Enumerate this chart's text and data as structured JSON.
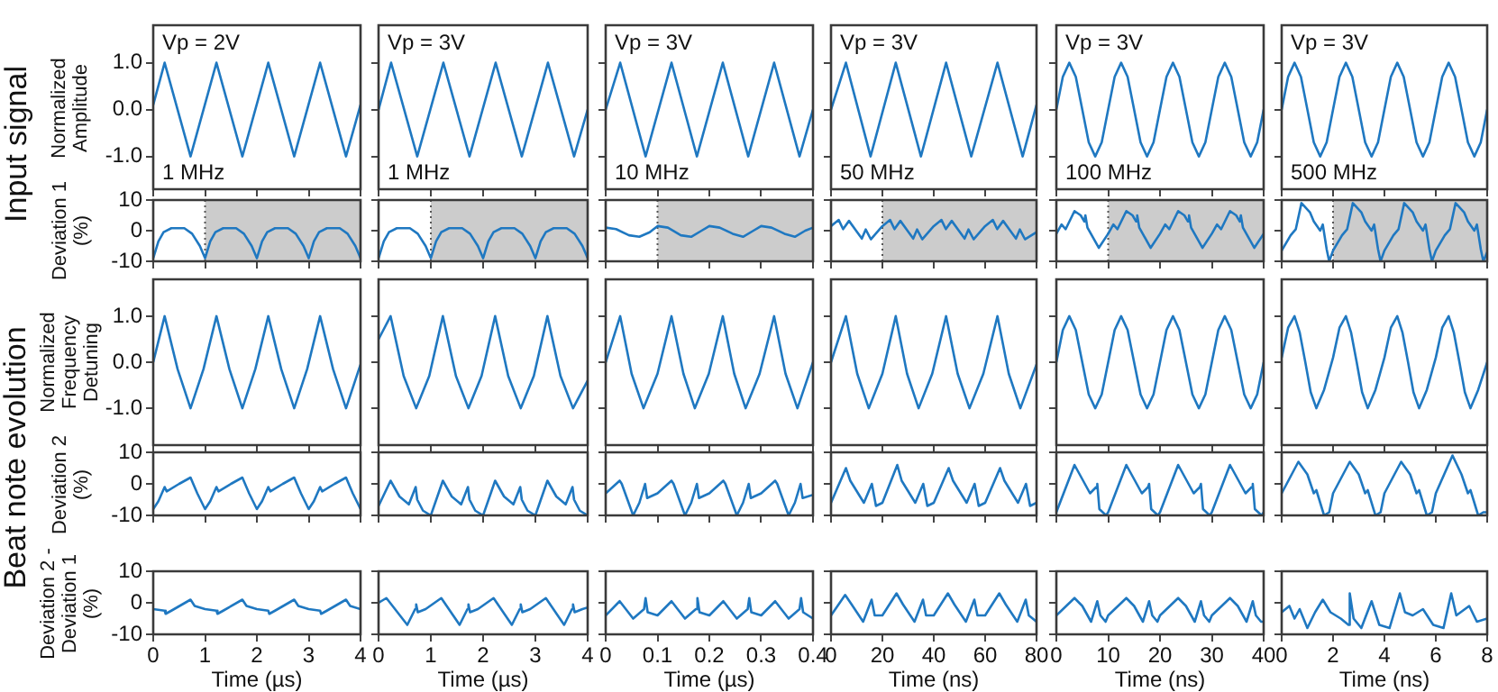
{
  "chart_data": [
    {
      "type": "line",
      "title": "Input signal",
      "ylabel": "Normalized Amplitude",
      "tick_labels": "y",
      "annotations": [
        "Vp = 2V",
        "1 MHz"
      ],
      "color": "#1f78c1",
      "xlim": [
        0,
        4
      ],
      "xticks": [
        0,
        1,
        2,
        3,
        4
      ],
      "ylim": [
        -1.7,
        1.8
      ],
      "yticks": [
        {
          "value": -1,
          "label": "-1.0"
        },
        {
          "value": 0,
          "label": "0.0"
        },
        {
          "value": 1,
          "label": "1.0"
        }
      ],
      "x": [
        0,
        0.22,
        0.72,
        1.22,
        1.72,
        2.22,
        2.72,
        3.22,
        3.72,
        4
      ],
      "values": [
        0.1,
        1,
        -1,
        1,
        -1,
        1,
        -1,
        1,
        -1,
        0.1
      ]
    },
    {
      "type": "line",
      "tick_labels": false,
      "annotations": [
        "Vp = 3V",
        "1 MHz"
      ],
      "color": "#1f78c1",
      "xlim": [
        0,
        4
      ],
      "xticks": [
        0,
        1,
        2,
        3,
        4
      ],
      "ylim": [
        -1.7,
        1.8
      ],
      "yticks": [
        -1,
        0,
        1
      ],
      "x": [
        0,
        0.24,
        0.74,
        1.24,
        1.74,
        2.24,
        2.74,
        3.24,
        3.74,
        4
      ],
      "values": [
        0,
        1,
        -1,
        1,
        -1,
        1,
        -1,
        1,
        -1,
        0
      ]
    },
    {
      "type": "line",
      "tick_labels": false,
      "annotations": [
        "Vp = 3V",
        "10 MHz"
      ],
      "color": "#1f78c1",
      "xlim": [
        0,
        0.4
      ],
      "xticks": [
        0,
        0.1,
        0.2,
        0.3,
        0.4
      ],
      "ylim": [
        -1.7,
        1.8
      ],
      "yticks": [
        -1,
        0,
        1
      ],
      "x": [
        0,
        0.028,
        0.077,
        0.127,
        0.176,
        0.226,
        0.275,
        0.325,
        0.374,
        0.4
      ],
      "values": [
        0,
        1,
        -1,
        1,
        -1,
        1,
        -1,
        1,
        -1,
        0
      ]
    },
    {
      "type": "line",
      "tick_labels": false,
      "annotations": [
        "Vp = 3V",
        "50 MHz"
      ],
      "color": "#1f78c1",
      "xlim": [
        0,
        80
      ],
      "xticks": [
        0,
        20,
        40,
        60,
        80
      ],
      "ylim": [
        -1.7,
        1.8
      ],
      "yticks": [
        -1,
        0,
        1
      ],
      "x": [
        0,
        5.8,
        15.4,
        25.2,
        35,
        44.8,
        54.6,
        64.8,
        74.6,
        80
      ],
      "values": [
        0,
        1,
        -1,
        1,
        -1,
        1,
        -1,
        1,
        -1,
        0.1
      ]
    },
    {
      "type": "line",
      "tick_labels": false,
      "annotations": [
        "Vp = 3V",
        "100 MHz"
      ],
      "color": "#1f78c1",
      "xlim": [
        0,
        40
      ],
      "xticks": [
        0,
        10,
        20,
        30,
        40
      ],
      "ylim": [
        -1.7,
        1.8
      ],
      "yticks": [
        -1,
        0,
        1
      ],
      "x": [
        0,
        1.25,
        2.5,
        3.75,
        5,
        6.25,
        7.5,
        8.75,
        10,
        11.25,
        12.5,
        13.75,
        15,
        16.25,
        17.5,
        18.75,
        20,
        21.25,
        22.5,
        23.75,
        25,
        26.25,
        27.5,
        28.75,
        30,
        31.25,
        32.5,
        33.75,
        35,
        36.25,
        37.5,
        38.75,
        40
      ],
      "values": [
        0,
        0.7,
        1,
        0.7,
        0,
        -0.7,
        -1,
        -0.7,
        0,
        0.7,
        1,
        0.7,
        0,
        -0.7,
        -1,
        -0.7,
        0,
        0.7,
        1,
        0.7,
        0,
        -0.7,
        -1,
        -0.7,
        0,
        0.7,
        1,
        0.7,
        0,
        -0.7,
        -1,
        -0.7,
        0
      ]
    },
    {
      "type": "line",
      "tick_labels": false,
      "annotations": [
        "Vp = 3V",
        "500 MHz"
      ],
      "color": "#1f78c1",
      "xlim": [
        0,
        8
      ],
      "xticks": [
        0,
        2,
        4,
        6,
        8
      ],
      "ylim": [
        -1.7,
        1.8
      ],
      "yticks": [
        -1,
        0,
        1
      ],
      "x": [
        0,
        0.25,
        0.5,
        0.75,
        1,
        1.25,
        1.5,
        1.75,
        2,
        2.25,
        2.5,
        2.75,
        3,
        3.25,
        3.5,
        3.75,
        4,
        4.25,
        4.5,
        4.75,
        5,
        5.25,
        5.5,
        5.75,
        6,
        6.25,
        6.5,
        6.75,
        7,
        7.25,
        7.5,
        7.75,
        8
      ],
      "values": [
        0,
        0.7,
        1,
        0.7,
        0,
        -0.7,
        -1,
        -0.7,
        0,
        0.7,
        1,
        0.7,
        0,
        -0.7,
        -1,
        -0.7,
        0,
        0.7,
        1,
        0.7,
        0,
        -0.7,
        -1,
        -0.7,
        0,
        0.7,
        1,
        0.7,
        0,
        -0.7,
        -1,
        -0.7,
        0
      ]
    },
    {
      "type": "line",
      "ylabel": "Deviation 1 (%)",
      "tick_labels": "y",
      "bands": [
        {
          "axis": "x",
          "from": 1,
          "to": 4,
          "color": "#cccccc"
        }
      ],
      "color": "#1f78c1",
      "xlim": [
        0,
        4
      ],
      "xticks": [
        0,
        1,
        2,
        3,
        4
      ],
      "ylim": [
        -10,
        10
      ],
      "yticks": [
        -10,
        0,
        10
      ],
      "x": [
        0,
        0.1,
        0.2,
        0.35,
        0.6,
        0.75,
        0.9,
        1,
        1.1,
        1.2,
        1.35,
        1.6,
        1.75,
        1.9,
        2,
        2.1,
        2.2,
        2.35,
        2.6,
        2.75,
        2.9,
        3,
        3.1,
        3.2,
        3.35,
        3.6,
        3.75,
        3.9,
        4
      ],
      "values": [
        -9,
        -3.5,
        -0.5,
        0.8,
        0.8,
        -1,
        -5,
        -9,
        -3.5,
        -0.5,
        0.8,
        0.8,
        -1,
        -5,
        -9,
        -3.5,
        -0.5,
        0.8,
        0.8,
        -1,
        -5,
        -9,
        -3.5,
        -0.5,
        0.8,
        0.8,
        -1,
        -5,
        -9
      ]
    },
    {
      "type": "line",
      "tick_labels": false,
      "bands": [
        {
          "axis": "x",
          "from": 1,
          "to": 4,
          "color": "#cccccc"
        }
      ],
      "color": "#1f78c1",
      "xlim": [
        0,
        4
      ],
      "xticks": [
        0,
        1,
        2,
        3,
        4
      ],
      "ylim": [
        -10,
        10
      ],
      "yticks": [
        -10,
        0,
        10
      ],
      "x": [
        0,
        0.1,
        0.2,
        0.35,
        0.6,
        0.75,
        0.9,
        1,
        1.1,
        1.2,
        1.35,
        1.6,
        1.75,
        1.9,
        2,
        2.1,
        2.2,
        2.35,
        2.6,
        2.75,
        2.9,
        3,
        3.1,
        3.2,
        3.35,
        3.6,
        3.75,
        3.9,
        4
      ],
      "values": [
        -9,
        -3.5,
        -0.5,
        0.8,
        0.8,
        -1,
        -5,
        -9,
        -3.5,
        -0.5,
        0.8,
        0.8,
        -1,
        -5,
        -9,
        -3.5,
        -0.5,
        0.8,
        0.8,
        -1,
        -5,
        -9,
        -3.5,
        -0.5,
        0.8,
        0.8,
        -1,
        -5,
        -9
      ]
    },
    {
      "type": "line",
      "tick_labels": false,
      "bands": [
        {
          "axis": "x",
          "from": 0.1,
          "to": 0.4,
          "color": "#cccccc"
        }
      ],
      "color": "#1f78c1",
      "xlim": [
        0,
        0.4
      ],
      "xticks": [
        0,
        0.1,
        0.2,
        0.3,
        0.4
      ],
      "ylim": [
        -10,
        10
      ],
      "yticks": [
        -10,
        0,
        10
      ],
      "x": [
        0,
        0.02,
        0.045,
        0.065,
        0.085,
        0.1,
        0.12,
        0.145,
        0.165,
        0.185,
        0.2,
        0.22,
        0.245,
        0.265,
        0.285,
        0.3,
        0.32,
        0.345,
        0.365,
        0.385,
        0.4
      ],
      "values": [
        1,
        0.5,
        -1.5,
        -2,
        -0.5,
        1.5,
        1,
        -1.5,
        -2,
        0,
        1.5,
        1,
        -1,
        -2,
        0,
        1.5,
        1,
        -1,
        -2,
        0,
        1
      ]
    },
    {
      "type": "line",
      "tick_labels": false,
      "bands": [
        {
          "axis": "x",
          "from": 20,
          "to": 80,
          "color": "#cccccc"
        }
      ],
      "color": "#1f78c1",
      "xlim": [
        0,
        80
      ],
      "xticks": [
        0,
        20,
        40,
        60,
        80
      ],
      "ylim": [
        -10,
        10
      ],
      "yticks": [
        -10,
        0,
        10
      ],
      "x": [
        0,
        3,
        4.7,
        7,
        12,
        13.5,
        15.5,
        20,
        23,
        24.7,
        27,
        32,
        33.5,
        35.5,
        40,
        43,
        44.7,
        47,
        52,
        53.5,
        55.5,
        60,
        63,
        64.7,
        67,
        72,
        73.5,
        75.5,
        80
      ],
      "values": [
        1.5,
        3.5,
        0.5,
        3.2,
        -2.6,
        0.4,
        -2.8,
        1.5,
        3.5,
        0.5,
        3.2,
        -2.6,
        0.4,
        -2.8,
        1.5,
        3.5,
        0.5,
        3.2,
        -2.6,
        0.4,
        -2.8,
        1.5,
        3.5,
        0.5,
        3.2,
        -2.6,
        0.4,
        -2.8,
        -0.5
      ]
    },
    {
      "type": "line",
      "tick_labels": false,
      "bands": [
        {
          "axis": "x",
          "from": 10,
          "to": 40,
          "color": "#cccccc"
        }
      ],
      "color": "#1f78c1",
      "xlim": [
        0,
        40
      ],
      "xticks": [
        0,
        10,
        20,
        30,
        40
      ],
      "ylim": [
        -10,
        10
      ],
      "yticks": [
        -10,
        0,
        10
      ],
      "x": [
        0,
        1,
        1.8,
        3.5,
        4.7,
        5.4,
        5.6,
        6,
        8.2,
        10,
        11,
        11.8,
        13.5,
        14.7,
        15.4,
        15.6,
        16,
        18.2,
        20,
        21,
        21.8,
        23.5,
        24.7,
        25.4,
        25.6,
        26,
        28.2,
        30,
        31,
        31.8,
        33.5,
        34.7,
        35.4,
        35.6,
        36,
        38.2,
        40
      ],
      "values": [
        -1,
        2,
        0.5,
        6.4,
        5,
        3,
        5,
        1,
        -5.6,
        -1,
        2,
        0.5,
        6.4,
        5,
        3,
        5,
        1,
        -5.6,
        -1,
        2,
        0.5,
        6.4,
        5,
        3,
        5,
        1,
        -5.6,
        -1,
        2,
        0.5,
        6.4,
        5,
        3,
        5,
        1,
        -5.6,
        -1
      ]
    },
    {
      "type": "line",
      "tick_labels": false,
      "bands": [
        {
          "axis": "x",
          "from": 2,
          "to": 8,
          "color": "#cccccc"
        }
      ],
      "color": "#1f78c1",
      "xlim": [
        0,
        8
      ],
      "xticks": [
        0,
        2,
        4,
        6,
        8
      ],
      "ylim": [
        -10,
        10
      ],
      "yticks": [
        -10,
        0,
        10
      ],
      "x": [
        0,
        0.35,
        0.55,
        0.77,
        1.1,
        1.25,
        1.5,
        1.6,
        1.75,
        1.85,
        2,
        2.35,
        2.55,
        2.77,
        3.1,
        3.25,
        3.5,
        3.6,
        3.75,
        3.85,
        4,
        4.35,
        4.55,
        4.77,
        5.1,
        5.25,
        5.5,
        5.6,
        5.75,
        5.85,
        6,
        6.35,
        6.55,
        6.77,
        7.1,
        7.25,
        7.5,
        7.6,
        7.75,
        7.85,
        8
      ],
      "values": [
        -6.5,
        -1.5,
        0.5,
        9,
        6,
        3,
        0,
        2,
        -6,
        -10,
        -6.5,
        -1.5,
        0.5,
        9,
        6,
        3,
        0,
        2,
        -6,
        -10,
        -6.5,
        -1.5,
        0.5,
        9,
        6,
        3,
        0,
        2,
        -6,
        -10,
        -6.5,
        -1.5,
        0.5,
        9,
        6,
        3,
        0,
        2,
        -6,
        -10,
        -7
      ]
    },
    {
      "type": "line",
      "title": "Beat note evolution",
      "ylabel": "Normalized Frequency Detuning",
      "tick_labels": "y",
      "color": "#1f78c1",
      "xlim": [
        0,
        4
      ],
      "xticks": [
        0,
        1,
        2,
        3,
        4
      ],
      "ylim": [
        -1.8,
        1.8
      ],
      "yticks": [
        {
          "value": -1,
          "label": "-1.0"
        },
        {
          "value": 0,
          "label": "0.0"
        },
        {
          "value": 1,
          "label": "1.0"
        }
      ],
      "x": [
        0,
        0.22,
        0.47,
        0.72,
        0.97,
        1.22,
        1.47,
        1.72,
        1.97,
        2.22,
        2.47,
        2.72,
        2.97,
        3.22,
        3.47,
        3.72,
        3.97,
        4
      ],
      "values": [
        0,
        1,
        -0.15,
        -1,
        -0.15,
        1,
        -0.15,
        -1,
        -0.15,
        1,
        -0.15,
        -1,
        -0.15,
        1,
        -0.15,
        -1,
        -0.15,
        -0.05
      ]
    },
    {
      "type": "line",
      "tick_labels": false,
      "color": "#1f78c1",
      "xlim": [
        0,
        4
      ],
      "xticks": [
        0,
        1,
        2,
        3,
        4
      ],
      "ylim": [
        -1.8,
        1.8
      ],
      "yticks": [
        -1,
        0,
        1
      ],
      "x": [
        0,
        0.23,
        0.48,
        0.72,
        0.97,
        1.23,
        1.48,
        1.72,
        1.97,
        2.23,
        2.48,
        2.72,
        2.97,
        3.23,
        3.48,
        3.72,
        4
      ],
      "values": [
        0.5,
        1,
        -0.3,
        -1,
        -0.3,
        1,
        -0.3,
        -1,
        -0.3,
        1,
        -0.3,
        -1,
        -0.3,
        1,
        -0.3,
        -1,
        -0.4
      ]
    },
    {
      "type": "line",
      "tick_labels": false,
      "color": "#1f78c1",
      "xlim": [
        0,
        0.4
      ],
      "xticks": [
        0,
        0.1,
        0.2,
        0.3,
        0.4
      ],
      "ylim": [
        -1.8,
        1.8
      ],
      "yticks": [
        -1,
        0,
        1
      ],
      "x": [
        0,
        0.028,
        0.05,
        0.073,
        0.1,
        0.127,
        0.15,
        0.172,
        0.199,
        0.226,
        0.248,
        0.27,
        0.297,
        0.325,
        0.347,
        0.37,
        0.4
      ],
      "values": [
        0,
        1,
        -0.25,
        -1,
        -0.25,
        1,
        -0.25,
        -1,
        -0.25,
        1,
        -0.25,
        -1,
        -0.25,
        1,
        -0.25,
        -1,
        0
      ]
    },
    {
      "type": "line",
      "tick_labels": false,
      "color": "#1f78c1",
      "xlim": [
        0,
        80
      ],
      "xticks": [
        0,
        20,
        40,
        60,
        80
      ],
      "ylim": [
        -1.8,
        1.8
      ],
      "yticks": [
        -1,
        0,
        1
      ],
      "x": [
        0,
        5.8,
        10.2,
        14.7,
        20,
        25.2,
        29.6,
        34.1,
        39.4,
        44.8,
        49.3,
        53.9,
        59.3,
        64.8,
        69.2,
        73.7,
        80
      ],
      "values": [
        0,
        1,
        -0.25,
        -1,
        -0.25,
        1,
        -0.25,
        -1,
        -0.25,
        1,
        -0.25,
        -1,
        -0.25,
        1,
        -0.25,
        -1,
        -0.05
      ]
    },
    {
      "type": "line",
      "tick_labels": false,
      "color": "#1f78c1",
      "xlim": [
        0,
        40
      ],
      "xticks": [
        0,
        10,
        20,
        30,
        40
      ],
      "ylim": [
        -1.8,
        1.8
      ],
      "yticks": [
        -1,
        0,
        1
      ],
      "x": [
        0,
        1.25,
        2.5,
        3.75,
        5,
        6.25,
        7.5,
        8.75,
        10,
        11.25,
        12.5,
        13.75,
        15,
        16.25,
        17.5,
        18.75,
        20,
        21.25,
        22.5,
        23.75,
        25,
        26.25,
        27.5,
        28.75,
        30,
        31.25,
        32.5,
        33.75,
        35,
        36.25,
        37.5,
        38.75,
        40
      ],
      "values": [
        0,
        0.7,
        1,
        0.7,
        0,
        -0.7,
        -1,
        -0.7,
        0,
        0.7,
        1,
        0.7,
        0,
        -0.7,
        -1,
        -0.7,
        0,
        0.7,
        1,
        0.7,
        0,
        -0.7,
        -1,
        -0.7,
        0,
        0.7,
        1,
        0.7,
        0,
        -0.7,
        -1,
        -0.7,
        0
      ]
    },
    {
      "type": "line",
      "tick_labels": false,
      "color": "#1f78c1",
      "xlim": [
        0,
        8
      ],
      "xticks": [
        0,
        2,
        4,
        6,
        8
      ],
      "ylim": [
        -1.8,
        1.8
      ],
      "yticks": [
        -1,
        0,
        1
      ],
      "x": [
        0,
        0.25,
        0.5,
        0.7,
        0.92,
        1.13,
        1.35,
        1.65,
        2,
        2.25,
        2.5,
        2.7,
        2.92,
        3.13,
        3.35,
        3.65,
        4,
        4.25,
        4.5,
        4.7,
        4.92,
        5.13,
        5.35,
        5.65,
        6,
        6.25,
        6.5,
        6.7,
        6.92,
        7.13,
        7.35,
        7.65,
        8
      ],
      "values": [
        0.1,
        0.75,
        1,
        0.65,
        0,
        -0.65,
        -1,
        -0.6,
        0.1,
        0.75,
        1,
        0.65,
        0,
        -0.65,
        -1,
        -0.6,
        0.1,
        0.75,
        1,
        0.65,
        0,
        -0.65,
        -1,
        -0.6,
        0.1,
        0.75,
        1,
        0.65,
        0,
        -0.65,
        -1,
        -0.6,
        0
      ]
    },
    {
      "type": "line",
      "ylabel": "Deviation 2 (%)",
      "tick_labels": "y",
      "color": "#1f78c1",
      "xlim": [
        0,
        4
      ],
      "xticks": [
        0,
        1,
        2,
        3,
        4
      ],
      "ylim": [
        -10,
        10
      ],
      "yticks": [
        -10,
        0,
        10
      ],
      "x": [
        0,
        0.1,
        0.22,
        0.26,
        0.5,
        0.72,
        0.85,
        1,
        1.1,
        1.22,
        1.26,
        1.5,
        1.72,
        1.85,
        2,
        2.1,
        2.22,
        2.26,
        2.5,
        2.72,
        2.85,
        3,
        3.1,
        3.22,
        3.26,
        3.5,
        3.72,
        3.85,
        4
      ],
      "values": [
        -8,
        -5.5,
        -1,
        -2.4,
        0,
        2,
        -3,
        -8,
        -5.5,
        -1,
        -2.4,
        0,
        2,
        -3,
        -8,
        -5.5,
        -1,
        -2.4,
        0,
        2,
        -3,
        -8,
        -5.5,
        -1,
        -2.4,
        0,
        2,
        -3,
        -8
      ]
    },
    {
      "type": "line",
      "tick_labels": false,
      "color": "#1f78c1",
      "xlim": [
        0,
        4
      ],
      "xticks": [
        0,
        1,
        2,
        3,
        4
      ],
      "ylim": [
        -10,
        10
      ],
      "yticks": [
        -10,
        0,
        10
      ],
      "x": [
        0,
        0.23,
        0.4,
        0.58,
        0.71,
        0.74,
        0.85,
        1,
        1.23,
        1.4,
        1.58,
        1.71,
        1.74,
        1.85,
        2,
        2.23,
        2.4,
        2.58,
        2.71,
        2.74,
        2.85,
        3,
        3.23,
        3.4,
        3.58,
        3.71,
        3.74,
        3.85,
        4
      ],
      "values": [
        -7,
        1,
        -4,
        -6.5,
        -1,
        -5,
        -8.5,
        -10,
        1,
        -4,
        -6.5,
        -1,
        -5,
        -8.5,
        -10,
        1,
        -4,
        -6.5,
        -1,
        -5,
        -8.5,
        -10,
        1,
        -4,
        -6.5,
        -1,
        -5,
        -8.5,
        -10
      ]
    },
    {
      "type": "line",
      "tick_labels": false,
      "color": "#1f78c1",
      "xlim": [
        0,
        0.4
      ],
      "xticks": [
        0,
        0.1,
        0.2,
        0.3,
        0.4
      ],
      "ylim": [
        -10,
        10
      ],
      "yticks": [
        -10,
        0,
        10
      ],
      "x": [
        0,
        0.027,
        0.031,
        0.053,
        0.065,
        0.076,
        0.08,
        0.1,
        0.127,
        0.131,
        0.153,
        0.165,
        0.176,
        0.18,
        0.2,
        0.227,
        0.231,
        0.253,
        0.265,
        0.276,
        0.28,
        0.3,
        0.327,
        0.331,
        0.353,
        0.365,
        0.376,
        0.38,
        0.4
      ],
      "values": [
        -3,
        1,
        0,
        -10,
        -6,
        0,
        -4.5,
        -3,
        1,
        0,
        -10,
        -6,
        0,
        -4.5,
        -3,
        1,
        0,
        -10,
        -6,
        0,
        -4.5,
        -3,
        1,
        0,
        -10,
        -6,
        0,
        -4.5,
        -3.5
      ]
    },
    {
      "type": "line",
      "tick_labels": false,
      "color": "#1f78c1",
      "xlim": [
        0,
        80
      ],
      "xticks": [
        0,
        20,
        40,
        60,
        80
      ],
      "ylim": [
        -10,
        10
      ],
      "yticks": [
        -10,
        0,
        10
      ],
      "x": [
        0,
        5.8,
        7.5,
        12.8,
        15.9,
        17.5,
        20,
        25.8,
        27.5,
        32.8,
        35.9,
        37.5,
        40,
        45.8,
        47.5,
        52.8,
        55.9,
        57.5,
        60,
        65.8,
        67.5,
        72.8,
        75.9,
        77.5,
        80
      ],
      "values": [
        -6,
        5,
        1,
        -6,
        0,
        -7,
        -6,
        6,
        1,
        -6,
        0,
        -7,
        -6,
        5,
        1,
        -6,
        0,
        -7,
        -6,
        5,
        1,
        -6,
        0,
        -7,
        -6
      ]
    },
    {
      "type": "line",
      "tick_labels": false,
      "color": "#1f78c1",
      "xlim": [
        0,
        40
      ],
      "xticks": [
        0,
        10,
        20,
        30,
        40
      ],
      "ylim": [
        -10,
        10
      ],
      "yticks": [
        -10,
        0,
        10
      ],
      "x": [
        0,
        3.5,
        4.5,
        6.5,
        7.7,
        7.9,
        8.3,
        9.6,
        10,
        13.5,
        14.5,
        16.5,
        17.7,
        17.9,
        18.3,
        19.6,
        20,
        23.5,
        24.5,
        26.5,
        27.7,
        27.9,
        28.3,
        29.6,
        30,
        33.5,
        34.5,
        36.5,
        37.7,
        37.9,
        38.3,
        39.6,
        40
      ],
      "values": [
        -9,
        6,
        3,
        -3,
        -1,
        0,
        -8,
        -10,
        -9,
        6,
        3,
        -3,
        -1,
        0,
        -8,
        -10,
        -9,
        6,
        3,
        -3,
        -1,
        0,
        -8,
        -10,
        -9,
        6,
        3,
        -3,
        -1,
        0,
        -8,
        -10,
        -9
      ]
    },
    {
      "type": "line",
      "tick_labels": false,
      "color": "#1f78c1",
      "xlim": [
        0,
        8
      ],
      "xticks": [
        0,
        2,
        4,
        6,
        8
      ],
      "ylim": [
        -10,
        10
      ],
      "yticks": [
        -10,
        0,
        10
      ],
      "x": [
        0,
        0.65,
        1,
        1.25,
        1.35,
        1.65,
        1.85,
        2,
        2.65,
        3,
        3.25,
        3.35,
        3.65,
        3.85,
        4,
        4.65,
        5,
        5.25,
        5.35,
        5.65,
        5.85,
        6,
        6.65,
        7,
        7.25,
        7.35,
        7.65,
        7.85,
        8
      ],
      "values": [
        -3,
        7,
        3,
        -3,
        -2,
        -10,
        -9,
        -3,
        7,
        3,
        -3,
        -2,
        -10,
        -9,
        -3,
        7,
        3,
        -3,
        -2,
        -10,
        -9,
        -3,
        9,
        3,
        -3,
        -2,
        -10,
        -9,
        -9
      ]
    },
    {
      "type": "line",
      "ylabel": "Deviation 2 - Deviation 1 (%)",
      "xlabel": "Time (µs)",
      "color": "#1f78c1",
      "xlim": [
        0,
        4
      ],
      "xticks": [
        0,
        1,
        2,
        3,
        4
      ],
      "ylim": [
        -10,
        10
      ],
      "yticks": [
        -10,
        0,
        10
      ],
      "x": [
        0,
        0.22,
        0.24,
        0.35,
        0.72,
        0.8,
        1,
        1.22,
        1.24,
        1.35,
        1.72,
        1.8,
        2,
        2.22,
        2.24,
        2.35,
        2.72,
        2.8,
        3,
        3.22,
        3.24,
        3.35,
        3.72,
        3.8,
        4
      ],
      "values": [
        -2,
        -2.5,
        -3.5,
        -2.5,
        1,
        -1,
        -2,
        -2.5,
        -3.5,
        -2.5,
        1,
        -1,
        -2,
        -2.5,
        -3.5,
        -2.5,
        1,
        -1,
        -2,
        -2.5,
        -3.5,
        -2.5,
        1,
        -1,
        -2
      ]
    },
    {
      "type": "line",
      "xlabel": "Time (µs)",
      "tick_labels": "x",
      "color": "#1f78c1",
      "xlim": [
        0,
        4
      ],
      "xticks": [
        0,
        1,
        2,
        3,
        4
      ],
      "ylim": [
        -10,
        10
      ],
      "yticks": [
        -10,
        0,
        10
      ],
      "x": [
        0,
        0.15,
        0.55,
        0.7,
        0.72,
        0.75,
        0.9,
        1.2,
        1.55,
        1.7,
        1.72,
        1.75,
        1.9,
        2.2,
        2.55,
        2.7,
        2.72,
        2.75,
        2.9,
        3.2,
        3.55,
        3.7,
        3.72,
        3.75,
        3.9,
        4
      ],
      "values": [
        0,
        1.5,
        -7,
        -2,
        -0.5,
        -3,
        -2,
        1.5,
        -7,
        -2,
        -0.5,
        -3,
        -2,
        1.5,
        -7,
        -2,
        -0.5,
        -3,
        -2,
        1.5,
        -7,
        -2,
        -0.5,
        -3,
        -2,
        -1.5
      ]
    },
    {
      "type": "line",
      "xlabel": "Time (µs)",
      "tick_labels": "x",
      "color": "#1f78c1",
      "xlim": [
        0,
        0.4
      ],
      "xticks": [
        0,
        0.1,
        0.2,
        0.3,
        0.4
      ],
      "ylim": [
        -10,
        10
      ],
      "yticks": [
        -10,
        0,
        10
      ],
      "x": [
        0,
        0.027,
        0.053,
        0.074,
        0.077,
        0.081,
        0.1,
        0.127,
        0.153,
        0.174,
        0.177,
        0.181,
        0.2,
        0.227,
        0.253,
        0.274,
        0.277,
        0.281,
        0.3,
        0.327,
        0.353,
        0.374,
        0.377,
        0.381,
        0.4
      ],
      "values": [
        -4,
        0.5,
        -5,
        -2,
        1.5,
        -3,
        -4,
        0.5,
        -5,
        -2,
        1.5,
        -3,
        -4,
        0.5,
        -5,
        -2,
        1.5,
        -3,
        -4,
        0.5,
        -5,
        -2,
        1.5,
        -3,
        -5
      ]
    },
    {
      "type": "line",
      "xlabel": "Time (ns)",
      "tick_labels": "x",
      "color": "#1f78c1",
      "xlim": [
        0,
        80
      ],
      "xticks": [
        0,
        20,
        40,
        60,
        80
      ],
      "ylim": [
        -10,
        10
      ],
      "yticks": [
        -10,
        0,
        10
      ],
      "x": [
        0,
        5.5,
        8,
        12.5,
        15.8,
        17,
        20,
        25.5,
        28,
        32.5,
        35.8,
        37,
        40,
        45.5,
        48,
        52.5,
        55.8,
        57,
        60,
        65.5,
        68,
        72.5,
        75.8,
        77,
        80
      ],
      "values": [
        -4,
        2.5,
        -0.5,
        -6,
        1,
        -4,
        -4,
        3,
        -0.5,
        -6,
        1,
        -4,
        -4,
        3,
        -0.5,
        -6,
        1,
        -4,
        -4,
        3,
        -0.5,
        -6,
        1,
        -4,
        -6
      ]
    },
    {
      "type": "line",
      "xlabel": "Time (ns)",
      "tick_labels": "x",
      "color": "#1f78c1",
      "xlim": [
        0,
        40
      ],
      "xticks": [
        0,
        10,
        20,
        30,
        40
      ],
      "ylim": [
        -10,
        10
      ],
      "yticks": [
        -10,
        0,
        10
      ],
      "x": [
        0,
        3.5,
        5,
        6.7,
        7.9,
        8.5,
        9.5,
        10,
        13.5,
        15,
        16.7,
        17.9,
        18.5,
        19.5,
        20,
        23.5,
        25,
        26.7,
        27.9,
        28.5,
        29.5,
        30,
        33.5,
        35,
        36.7,
        37.9,
        38.5,
        39.5,
        40
      ],
      "values": [
        -4,
        1.5,
        -1,
        -6,
        0.5,
        -4,
        -6,
        -4,
        1.5,
        -1,
        -6,
        0.5,
        -4,
        -6,
        -4,
        1.5,
        -1,
        -6,
        0.5,
        -4,
        -6,
        -4,
        1.5,
        -1,
        -6,
        0.5,
        -4,
        -6,
        -6
      ]
    },
    {
      "type": "line",
      "xlabel": "Time (ns)",
      "tick_labels": "x",
      "color": "#1f78c1",
      "xlim": [
        0,
        8
      ],
      "xticks": [
        0,
        2,
        4,
        6,
        8
      ],
      "ylim": [
        -10,
        10
      ],
      "yticks": [
        -10,
        0,
        10
      ],
      "x": [
        0,
        0.3,
        0.5,
        0.7,
        1,
        1.3,
        1.6,
        1.9,
        2.3,
        2.6,
        2.65,
        2.8,
        3.1,
        3.5,
        3.8,
        4.2,
        4.6,
        4.8,
        5.1,
        5.5,
        5.9,
        6.3,
        6.6,
        6.8,
        7.3,
        7.6,
        8
      ],
      "values": [
        -3,
        -1,
        -5,
        -2,
        -8,
        -3,
        1,
        -3,
        -5,
        -7,
        3,
        -5,
        -8,
        0.5,
        -7,
        -8,
        3,
        -3,
        -4,
        -2,
        -7,
        -8,
        3,
        -4,
        -1,
        -6,
        -5
      ]
    }
  ]
}
